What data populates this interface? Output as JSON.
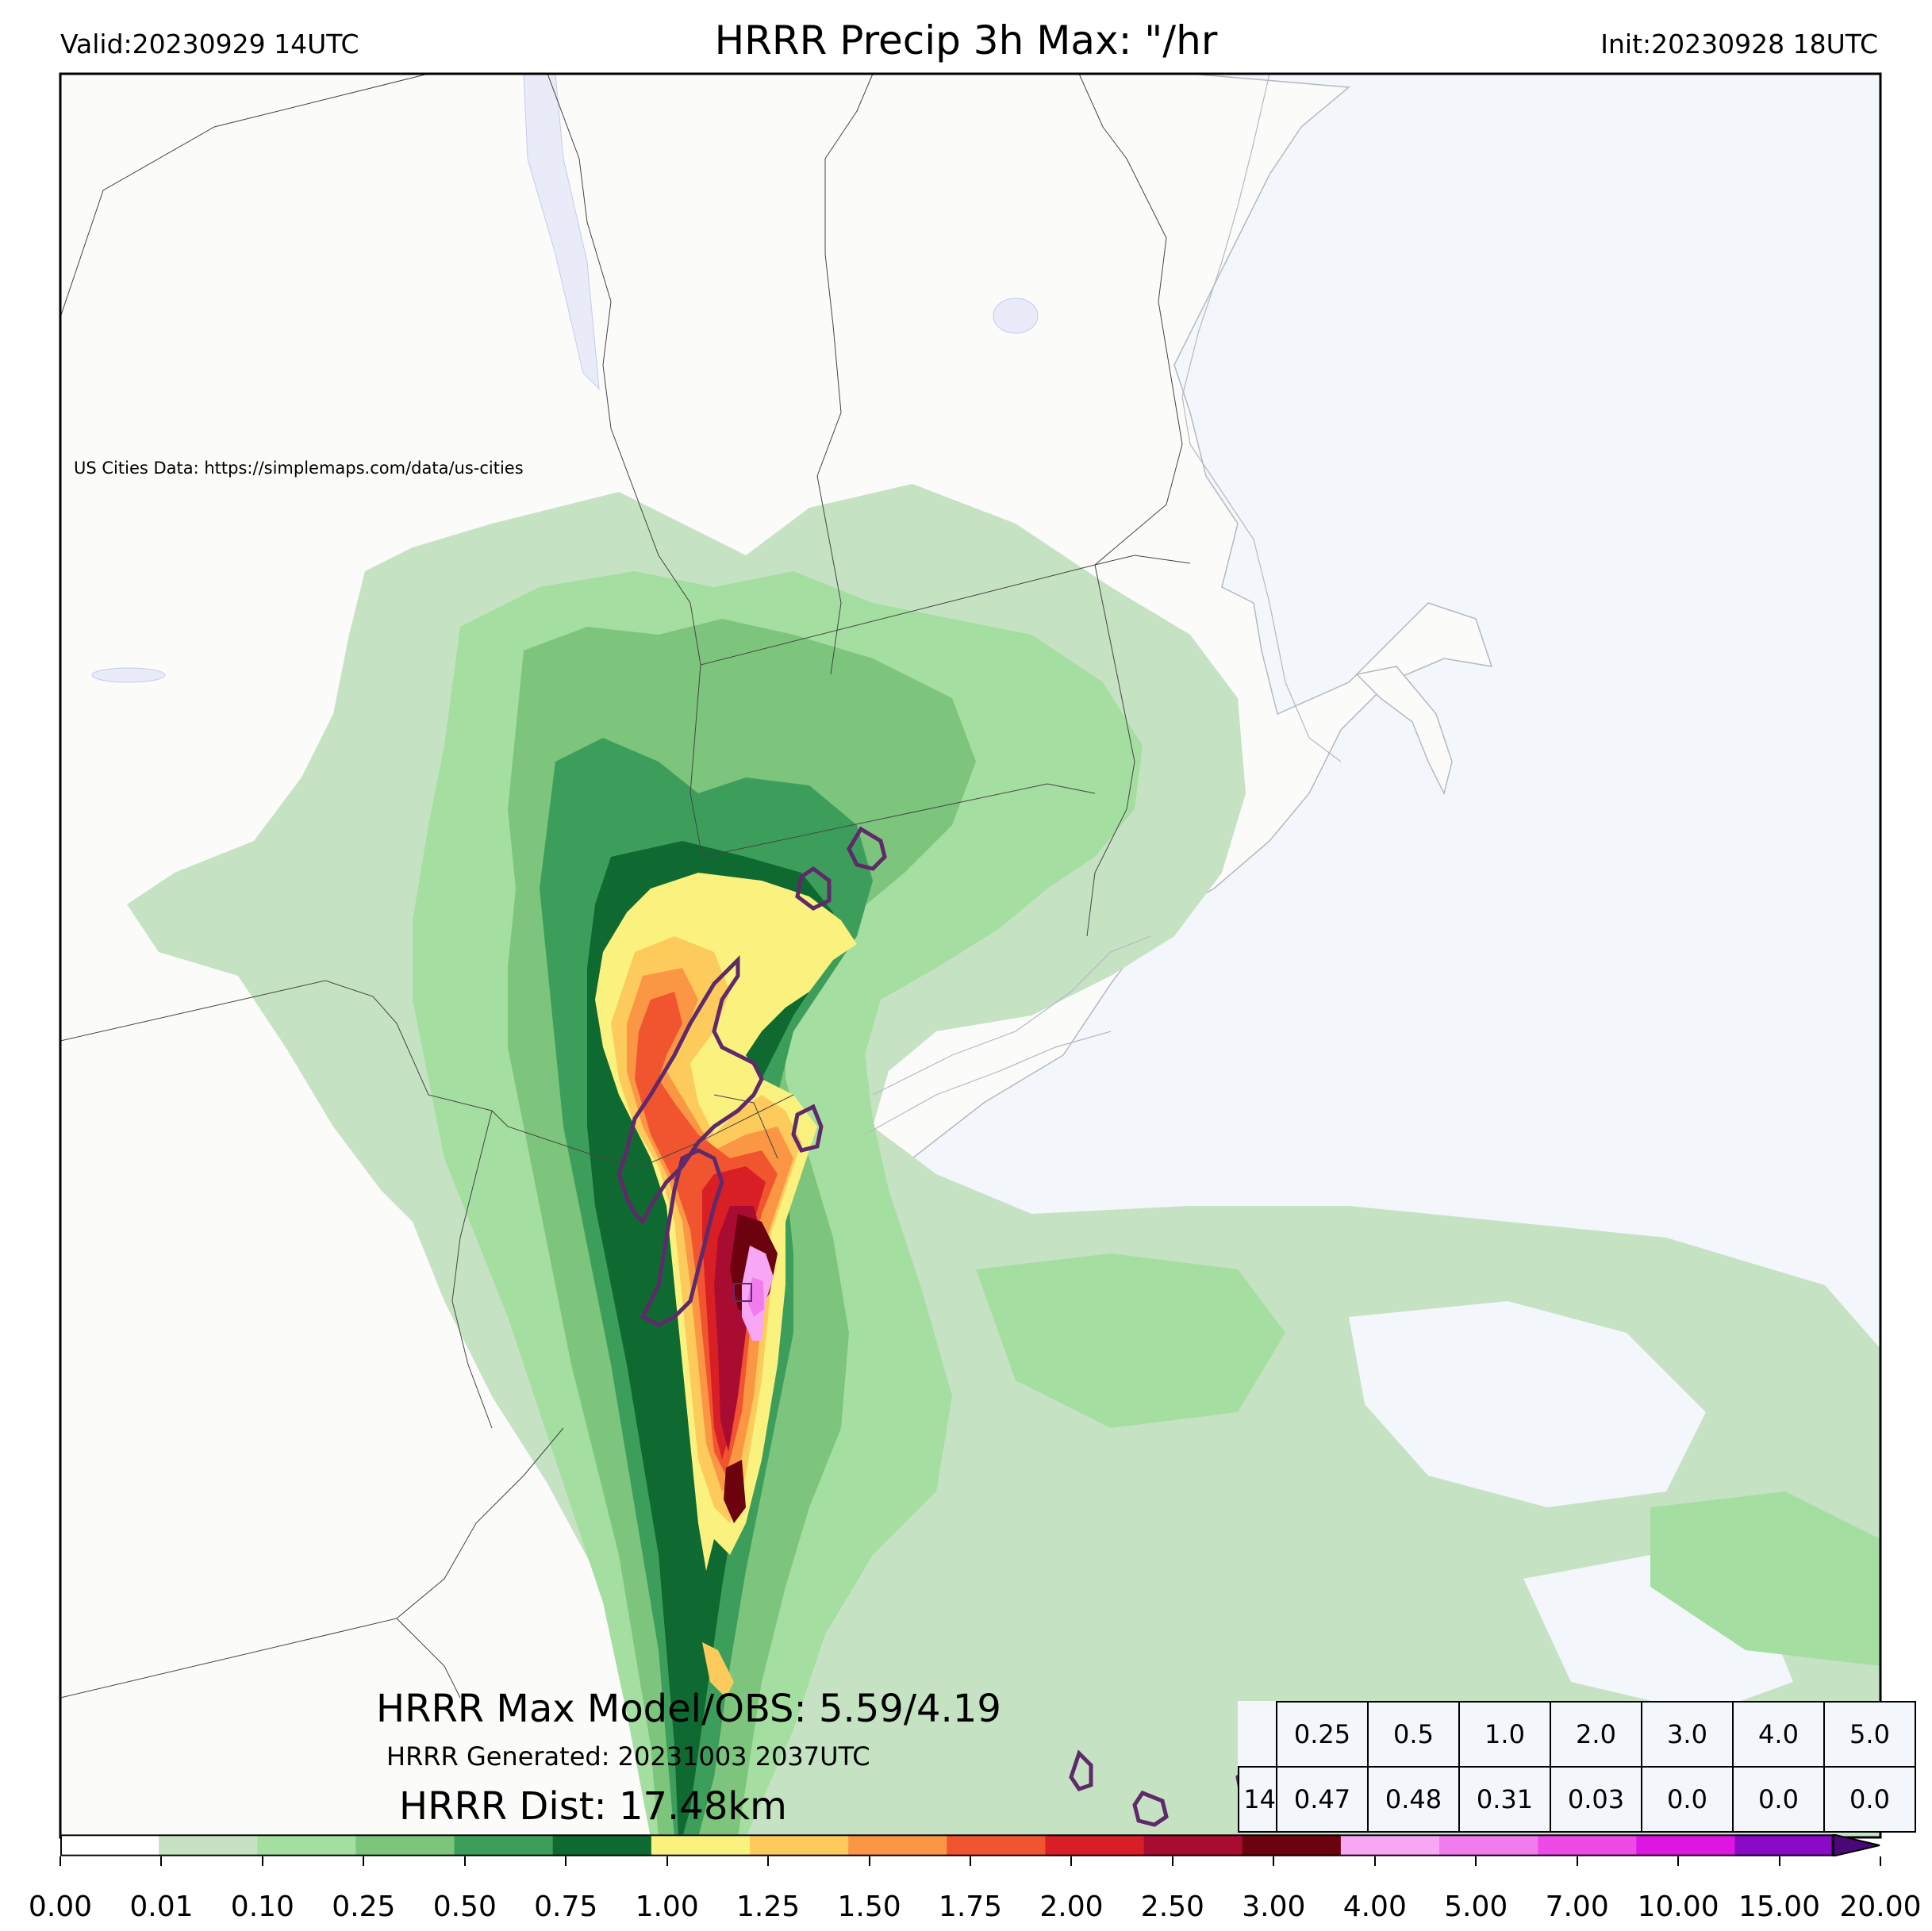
{
  "header": {
    "valid": "Valid:20230929 14UTC",
    "title": "HRRR Precip 3h Max: \"/hr",
    "init": "Init:20230928 18UTC"
  },
  "credit": "US Cities Data: https://simplemaps.com/data/us-cities",
  "stats": {
    "max_line": "HRRR Max Model/OBS: 5.59/4.19",
    "generated_line": "HRRR Generated: 20231003 2037UTC",
    "dist_line": "HRRR Dist: 17.48km"
  },
  "threshold_table": {
    "thresholds": [
      "0.25",
      "0.5",
      "1.0",
      "2.0",
      "3.0",
      "4.0",
      "5.0"
    ],
    "row_label": "14",
    "values": [
      "0.47",
      "0.48",
      "0.31",
      "0.03",
      "0.0",
      "0.0",
      "0.0"
    ]
  },
  "colorbar": {
    "ticks": [
      "0.00",
      "0.01",
      "0.10",
      "0.25",
      "0.50",
      "0.75",
      "1.00",
      "1.25",
      "1.50",
      "1.75",
      "2.00",
      "2.50",
      "3.00",
      "4.00",
      "5.00",
      "7.00",
      "10.00",
      "15.00",
      "20.00"
    ],
    "colors": [
      "#ffffff",
      "#c5e2c3",
      "#a5dea1",
      "#7dc47d",
      "#3d9e5c",
      "#0f6a32",
      "#fbf17f",
      "#fdcb5c",
      "#fb9645",
      "#f1552f",
      "#d81f26",
      "#a90c31",
      "#6b020d",
      "#f7a7f3",
      "#f17cee",
      "#ee4ae8",
      "#dd16e2",
      "#8a0ac8"
    ],
    "over_color": "#4a0877"
  },
  "colors": {
    "land": "#fbfbfa",
    "water": "#f3f6fb",
    "obs_contour": "#5e2a6a"
  }
}
